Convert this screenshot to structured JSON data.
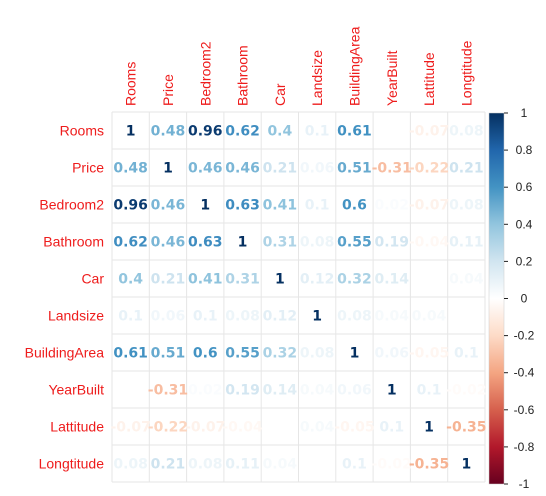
{
  "chart_data": {
    "type": "heatmap",
    "variables": [
      "Rooms",
      "Price",
      "Bedroom2",
      "Bathroom",
      "Car",
      "Landsize",
      "BuildingArea",
      "YearBuilt",
      "Lattitude",
      "Longtitude"
    ],
    "matrix": [
      [
        1,
        0.48,
        0.96,
        0.62,
        0.4,
        0.1,
        0.61,
        null,
        -0.07,
        0.08
      ],
      [
        0.48,
        1,
        0.46,
        0.46,
        0.21,
        0.06,
        0.51,
        -0.31,
        -0.22,
        0.21
      ],
      [
        0.96,
        0.46,
        1,
        0.63,
        0.41,
        0.1,
        0.6,
        0.02,
        -0.07,
        0.08
      ],
      [
        0.62,
        0.46,
        0.63,
        1,
        0.31,
        0.08,
        0.55,
        0.19,
        -0.04,
        0.11
      ],
      [
        0.4,
        0.21,
        0.41,
        0.31,
        1,
        0.12,
        0.32,
        0.14,
        0,
        0.04
      ],
      [
        0.1,
        0.06,
        0.1,
        0.08,
        0.12,
        1,
        0.08,
        0.04,
        0.04,
        null
      ],
      [
        0.61,
        0.51,
        0.6,
        0.55,
        0.32,
        0.08,
        1,
        0.06,
        -0.05,
        0.1
      ],
      [
        null,
        -0.31,
        0.02,
        0.19,
        0.14,
        0.04,
        0.06,
        1,
        0.1,
        -0.02
      ],
      [
        -0.07,
        -0.22,
        -0.07,
        -0.04,
        0,
        0.04,
        -0.05,
        0.1,
        1,
        -0.35
      ],
      [
        0.08,
        0.21,
        0.08,
        0.11,
        0.04,
        null,
        0.1,
        -0.02,
        -0.35,
        1
      ]
    ],
    "colorbar": {
      "ticks": [
        "1",
        "0.8",
        "0.6",
        "0.4",
        "0.2",
        "0",
        "-0.2",
        "-0.4",
        "-0.6",
        "-0.8",
        "-1"
      ],
      "range": [
        -1,
        1
      ],
      "colors": [
        "#67001f",
        "#b2182b",
        "#d6604d",
        "#f4a582",
        "#fddbc7",
        "#ffffff",
        "#d1e5f0",
        "#92c5de",
        "#4393c3",
        "#2166ac",
        "#053061"
      ]
    },
    "label_color": "#ee1c1c",
    "grid": true
  }
}
